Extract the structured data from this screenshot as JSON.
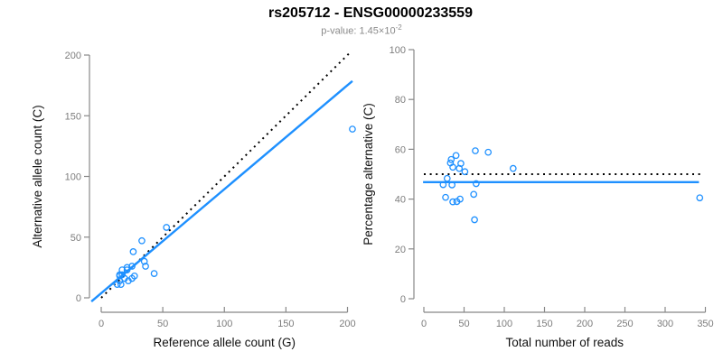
{
  "header": {
    "title": "rs205712 - ENSG00000233559",
    "pvalue_text": "p-value: 1.45×10",
    "pvalue_exponent": "-2"
  },
  "colors": {
    "accent": "#1E90FF",
    "identity_line": "#000000",
    "axis_line": "#888888",
    "tick_label": "#7d7d7d",
    "axis_title": "#111111",
    "title": "#000000",
    "subtitle": "#8a8a8a",
    "background": "#ffffff"
  },
  "chart_data": [
    {
      "type": "scatter",
      "panel": "left",
      "title": "rs205712 - ENSG00000233559",
      "subtitle": "p-value: 1.45e-2",
      "xlabel": "Reference allele count (G)",
      "ylabel": "Alternative allele count (C)",
      "xlim": [
        0,
        200
      ],
      "ylim": [
        0,
        200
      ],
      "xticks": [
        0,
        50,
        100,
        150,
        200
      ],
      "yticks": [
        0,
        50,
        100,
        150,
        200
      ],
      "grid": false,
      "legend": "none",
      "marker": "open-circle",
      "points": [
        [
          26,
          38
        ],
        [
          33,
          47
        ],
        [
          17,
          23
        ],
        [
          15,
          19
        ],
        [
          21,
          25
        ],
        [
          15,
          18
        ],
        [
          17,
          19
        ],
        [
          25,
          26
        ],
        [
          21,
          23
        ],
        [
          53,
          58
        ],
        [
          15,
          14
        ],
        [
          13,
          11
        ],
        [
          19,
          16
        ],
        [
          35,
          30
        ],
        [
          36,
          26
        ],
        [
          16,
          11
        ],
        [
          22,
          14
        ],
        [
          25,
          16
        ],
        [
          27,
          18
        ],
        [
          43,
          20
        ],
        [
          204,
          139
        ]
      ],
      "lines": [
        {
          "name": "identity-line",
          "style": "dotted",
          "color": "#000000",
          "from": [
            0,
            0
          ],
          "to": [
            202.5,
            202.5
          ]
        },
        {
          "name": "regression-line",
          "style": "solid",
          "color": "#1E90FF",
          "from": [
            -8,
            -3
          ],
          "to": [
            204,
            178.6
          ]
        }
      ]
    },
    {
      "type": "scatter",
      "panel": "right",
      "xlabel": "Total number of reads",
      "ylabel": "Percentage alternative (C)",
      "xlim": [
        0,
        350
      ],
      "ylim": [
        0,
        100
      ],
      "xticks": [
        0,
        50,
        100,
        150,
        200,
        250,
        300,
        350
      ],
      "yticks": [
        0,
        20,
        40,
        60,
        80,
        100
      ],
      "grid": false,
      "legend": "none",
      "marker": "open-circle",
      "points": [
        [
          64,
          59.4
        ],
        [
          80,
          58.8
        ],
        [
          40,
          57.5
        ],
        [
          34,
          55.9
        ],
        [
          46,
          54.3
        ],
        [
          33,
          54.5
        ],
        [
          36,
          52.8
        ],
        [
          51,
          51.0
        ],
        [
          44,
          52.3
        ],
        [
          111,
          52.3
        ],
        [
          29,
          48.3
        ],
        [
          24,
          45.8
        ],
        [
          35,
          45.7
        ],
        [
          65,
          46.2
        ],
        [
          62,
          41.9
        ],
        [
          27,
          40.7
        ],
        [
          36,
          38.9
        ],
        [
          41,
          39.0
        ],
        [
          45,
          40.0
        ],
        [
          63,
          31.7
        ],
        [
          343,
          40.5
        ]
      ],
      "lines": [
        {
          "name": "expected-50pct-line",
          "style": "dotted",
          "color": "#000000",
          "from": [
            0,
            50
          ],
          "to": [
            346,
            50
          ]
        },
        {
          "name": "mean-percentage-line",
          "style": "solid",
          "color": "#1E90FF",
          "from": [
            -1,
            46.8
          ],
          "to": [
            342,
            46.8
          ]
        }
      ]
    }
  ]
}
